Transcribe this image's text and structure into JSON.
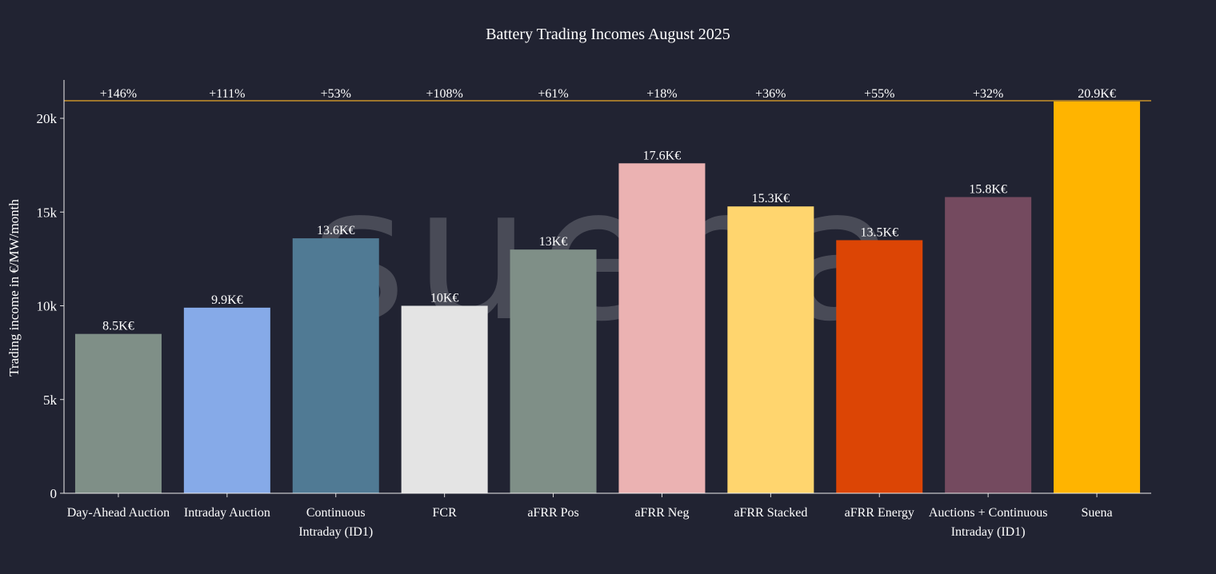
{
  "chart_data": {
    "type": "bar",
    "title": "Battery Trading Incomes August 2025",
    "xlabel": "",
    "ylabel": "Trading income in €/MW/month",
    "ylim": [
      0,
      21200
    ],
    "yticks": [
      0,
      5000,
      10000,
      15000,
      20000
    ],
    "ytick_labels": [
      "0",
      "5k",
      "10k",
      "15k",
      "20k"
    ],
    "grid": false,
    "categories": [
      [
        "Day-Ahead Auction"
      ],
      [
        "Intraday Auction"
      ],
      [
        "Continuous",
        "Intraday (ID1)"
      ],
      [
        "FCR"
      ],
      [
        "aFRR Pos"
      ],
      [
        "aFRR Neg"
      ],
      [
        "aFRR Stacked"
      ],
      [
        "aFRR Energy"
      ],
      [
        "Auctions + Continuous",
        "Intraday (ID1)"
      ],
      [
        "Suena"
      ]
    ],
    "values": [
      8500,
      9900,
      13600,
      10000,
      13000,
      17600,
      15300,
      13500,
      15800,
      20900
    ],
    "data_labels": [
      "8.5K€",
      "9.9K€",
      "13.6K€",
      "10K€",
      "13K€",
      "17.6K€",
      "15.3K€",
      "13.5K€",
      "15.8K€",
      "20.9K€"
    ],
    "top_annotations": [
      "+146%",
      "+111%",
      "+53%",
      "+108%",
      "+61%",
      "+18%",
      "+36%",
      "+55%",
      "+32%",
      "20.9K€"
    ],
    "reference_line": {
      "value": 20900,
      "color": "#c8912a"
    },
    "colors": [
      "#7f8f87",
      "#86aae8",
      "#507a94",
      "#e4e4e4",
      "#7f8f87",
      "#ebb2b2",
      "#ffd56e",
      "#dc4505",
      "#744a5f",
      "#ffb400"
    ],
    "watermark": "suena"
  }
}
